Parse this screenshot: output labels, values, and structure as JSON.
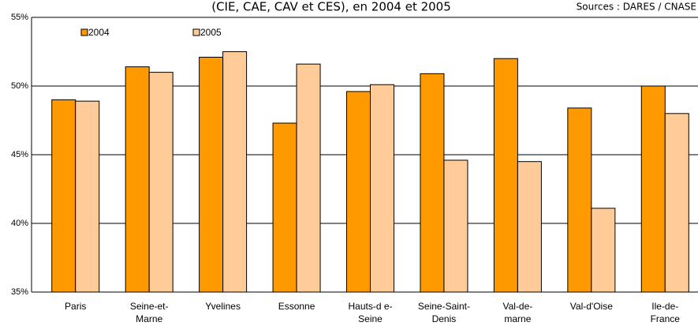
{
  "chart_data": {
    "type": "bar",
    "title": "(CIE, CAE, CAV et CES), en 2004 et 2005",
    "source": "Sources : DARES / CNASE",
    "categories": [
      [
        "Paris"
      ],
      [
        "Seine-et-",
        "Marne"
      ],
      [
        "Yvelines"
      ],
      [
        "Essonne"
      ],
      [
        "Hauts-d e-",
        "Seine"
      ],
      [
        "Seine-Saint-",
        "Denis"
      ],
      [
        "Val-de-",
        "marne"
      ],
      [
        "Val-d'Oise"
      ],
      [
        "Ile-de-",
        "France"
      ]
    ],
    "series": [
      {
        "name": "2004",
        "color": "#ff9900",
        "values": [
          49.0,
          51.4,
          52.1,
          47.3,
          49.6,
          50.9,
          52.0,
          48.4,
          50.0
        ]
      },
      {
        "name": "2005",
        "color": "#ffcc99",
        "values": [
          48.9,
          51.0,
          52.5,
          51.6,
          50.1,
          44.6,
          44.5,
          41.1,
          48.0
        ]
      }
    ],
    "ylim": [
      35,
      55
    ],
    "yticks": [
      {
        "value": 35,
        "label": "35%"
      },
      {
        "value": 40,
        "label": "40%"
      },
      {
        "value": 45,
        "label": "45%"
      },
      {
        "value": 50,
        "label": "50%"
      },
      {
        "value": 55,
        "label": "55%"
      }
    ],
    "grid": true
  }
}
